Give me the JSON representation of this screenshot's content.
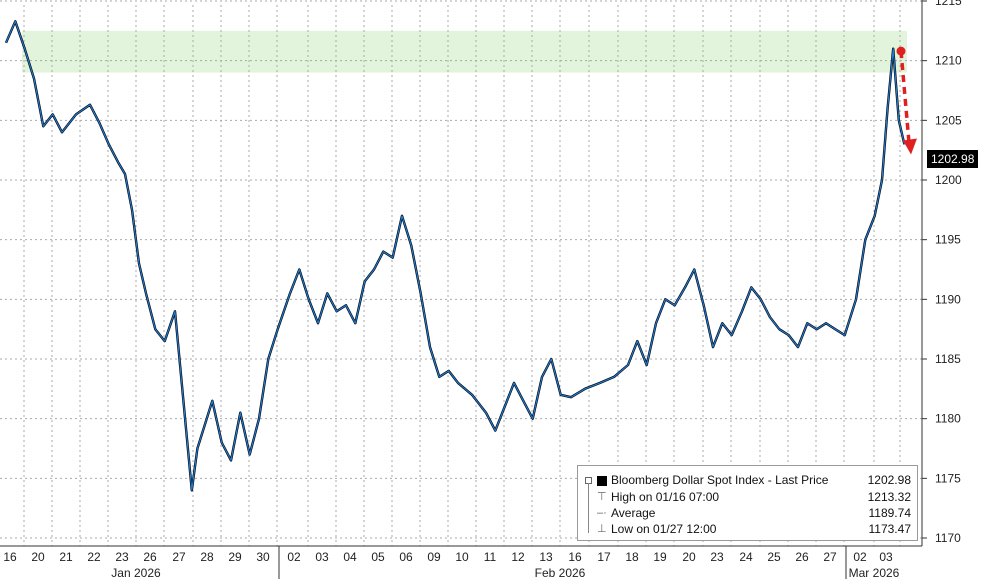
{
  "chart_data": {
    "type": "line",
    "ylim": [
      1170,
      1215
    ],
    "y_ticks": [
      1170,
      1175,
      1180,
      1185,
      1190,
      1195,
      1200,
      1205,
      1210,
      1215
    ],
    "grid": true,
    "axis_side": "right",
    "x_day_labels": [
      "16",
      "20",
      "21",
      "22",
      "23",
      "26",
      "27",
      "28",
      "29",
      "30",
      "02",
      "03",
      "04",
      "05",
      "06",
      "09",
      "10",
      "11",
      "12",
      "13",
      "16",
      "17",
      "18",
      "19",
      "20",
      "23",
      "24",
      "25",
      "26",
      "27",
      "02",
      "03"
    ],
    "month_labels": [
      "Jan 2026",
      "Feb 2026",
      "Mar 2026"
    ],
    "highlight_band": {
      "y_range": [
        1209,
        1212.5
      ],
      "color": "#e2f5dc"
    },
    "series": [
      {
        "name": "Bloomberg Dollar Spot Index - Last Price",
        "color": "#1f78d1",
        "points": [
          [
            "16",
            1211.5
          ],
          [
            "16",
            1213.3
          ],
          [
            "16",
            1211.0
          ],
          [
            "20",
            1208.5
          ],
          [
            "20",
            1204.5
          ],
          [
            "20",
            1205.5
          ],
          [
            "21",
            1204.0
          ],
          [
            "21",
            1205.5
          ],
          [
            "22",
            1206.3
          ],
          [
            "22",
            1204.8
          ],
          [
            "22",
            1203.0
          ],
          [
            "23",
            1201.5
          ],
          [
            "23",
            1200.5
          ],
          [
            "23",
            1197.5
          ],
          [
            "23",
            1193.0
          ],
          [
            "26",
            1190.5
          ],
          [
            "26",
            1187.5
          ],
          [
            "26",
            1186.5
          ],
          [
            "27",
            1189.0
          ],
          [
            "27",
            1184.0
          ],
          [
            "27",
            1179.0
          ],
          [
            "27",
            1174.0
          ],
          [
            "27",
            1177.5
          ],
          [
            "28",
            1179.0
          ],
          [
            "28",
            1181.5
          ],
          [
            "28",
            1178.0
          ],
          [
            "29",
            1176.5
          ],
          [
            "29",
            1180.5
          ],
          [
            "29",
            1177.0
          ],
          [
            "30",
            1180.0
          ],
          [
            "30",
            1185.0
          ],
          [
            "30",
            1187.5
          ],
          [
            "02",
            1190.5
          ],
          [
            "02",
            1192.5
          ],
          [
            "02",
            1190.0
          ],
          [
            "03",
            1188.0
          ],
          [
            "03",
            1190.5
          ],
          [
            "03",
            1189.0
          ],
          [
            "04",
            1189.5
          ],
          [
            "04",
            1188.0
          ],
          [
            "04",
            1191.5
          ],
          [
            "05",
            1192.5
          ],
          [
            "05",
            1194.0
          ],
          [
            "05",
            1193.5
          ],
          [
            "06",
            1197.0
          ],
          [
            "06",
            1194.5
          ],
          [
            "06",
            1190.5
          ],
          [
            "09",
            1186.0
          ],
          [
            "09",
            1183.5
          ],
          [
            "09",
            1184.0
          ],
          [
            "10",
            1183.0
          ],
          [
            "10",
            1182.0
          ],
          [
            "11",
            1180.5
          ],
          [
            "11",
            1179.0
          ],
          [
            "11",
            1181.0
          ],
          [
            "12",
            1183.0
          ],
          [
            "12",
            1181.5
          ],
          [
            "12",
            1180.0
          ],
          [
            "13",
            1183.5
          ],
          [
            "13",
            1185.0
          ],
          [
            "13",
            1182.0
          ],
          [
            "16",
            1181.8
          ],
          [
            "16",
            1182.5
          ],
          [
            "17",
            1183.0
          ],
          [
            "17",
            1183.5
          ],
          [
            "18",
            1184.5
          ],
          [
            "18",
            1186.5
          ],
          [
            "18",
            1184.5
          ],
          [
            "19",
            1188.0
          ],
          [
            "19",
            1190.0
          ],
          [
            "19",
            1189.5
          ],
          [
            "20",
            1191.0
          ],
          [
            "20",
            1192.5
          ],
          [
            "20",
            1189.5
          ],
          [
            "23",
            1186.0
          ],
          [
            "23",
            1188.0
          ],
          [
            "23",
            1187.0
          ],
          [
            "24",
            1189.0
          ],
          [
            "24",
            1191.0
          ],
          [
            "24",
            1190.0
          ],
          [
            "25",
            1188.5
          ],
          [
            "25",
            1187.5
          ],
          [
            "25",
            1187.0
          ],
          [
            "26",
            1186.0
          ],
          [
            "26",
            1188.0
          ],
          [
            "26",
            1187.5
          ],
          [
            "27",
            1188.0
          ],
          [
            "27",
            1187.5
          ],
          [
            "27",
            1187.0
          ],
          [
            "02",
            1190.0
          ],
          [
            "02",
            1195.0
          ],
          [
            "02",
            1197.0
          ],
          [
            "03",
            1200.0
          ],
          [
            "03",
            1206.0
          ],
          [
            "03",
            1211.0
          ],
          [
            "03",
            1205.0
          ],
          [
            "03",
            1202.98
          ]
        ]
      }
    ],
    "last_value_tag": "1202.98",
    "annotation": {
      "type": "dashed-arrow",
      "color": "#e02020",
      "from": [
        "03",
        1210.8
      ],
      "to": [
        "03",
        1202.3
      ]
    }
  },
  "legend": {
    "title": "Bloomberg Dollar Spot Index - Last Price",
    "title_value": "1202.98",
    "rows": [
      {
        "label": "High on 01/16 07:00",
        "value": "1213.32"
      },
      {
        "label": "Average",
        "value": "1189.74"
      },
      {
        "label": "Low on 01/27 12:00",
        "value": "1173.47"
      }
    ]
  }
}
